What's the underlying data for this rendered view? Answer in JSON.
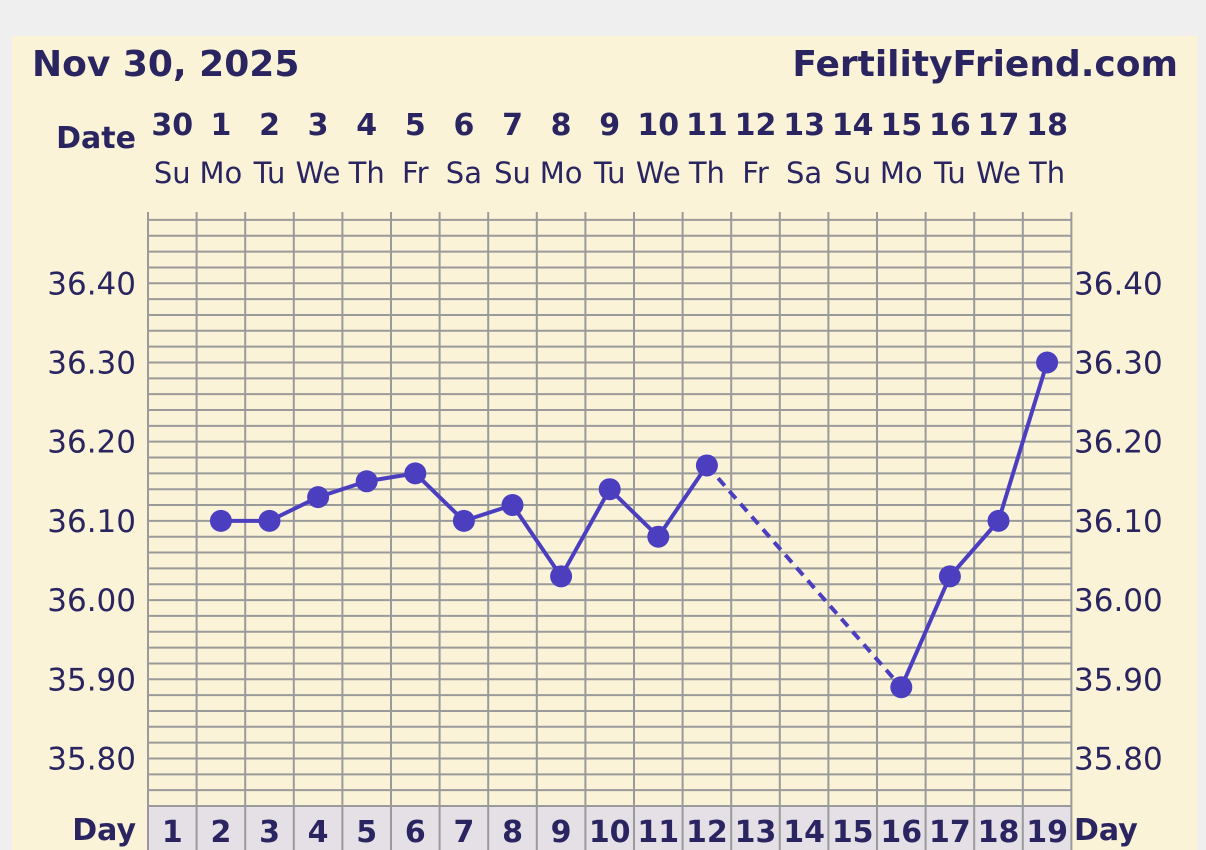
{
  "header": {
    "date_label": "Nov 30, 2025",
    "site": "FertilityFriend.com"
  },
  "labels": {
    "date_row": "Date",
    "day_row": "Day"
  },
  "colors": {
    "line": "#4b3fc0",
    "text": "#2a2560",
    "background": "#faf3d7",
    "grid": "#9a9a9a",
    "day_cell": "#e4e0e6"
  },
  "chart_data": {
    "type": "line",
    "dates": [
      "30",
      "1",
      "2",
      "3",
      "4",
      "5",
      "6",
      "7",
      "8",
      "9",
      "10",
      "11",
      "12",
      "13",
      "14",
      "15",
      "16",
      "17",
      "18"
    ],
    "weekdays": [
      "Su",
      "Mo",
      "Tu",
      "We",
      "Th",
      "Fr",
      "Sa",
      "Su",
      "Mo",
      "Tu",
      "We",
      "Th",
      "Fr",
      "Sa",
      "Su",
      "Mo",
      "Tu",
      "We",
      "Th"
    ],
    "days": [
      "1",
      "2",
      "3",
      "4",
      "5",
      "6",
      "7",
      "8",
      "9",
      "10",
      "11",
      "12",
      "13",
      "14",
      "15",
      "16",
      "17",
      "18",
      "19"
    ],
    "y_ticks": [
      "36.40",
      "36.30",
      "36.20",
      "36.10",
      "36.00",
      "35.90",
      "35.80"
    ],
    "ylim": [
      35.74,
      36.49
    ],
    "grid": true,
    "points": [
      {
        "day": 2,
        "temp": 36.1
      },
      {
        "day": 3,
        "temp": 36.1
      },
      {
        "day": 4,
        "temp": 36.13
      },
      {
        "day": 5,
        "temp": 36.15
      },
      {
        "day": 6,
        "temp": 36.16
      },
      {
        "day": 7,
        "temp": 36.1
      },
      {
        "day": 8,
        "temp": 36.12
      },
      {
        "day": 9,
        "temp": 36.03
      },
      {
        "day": 10,
        "temp": 36.14
      },
      {
        "day": 11,
        "temp": 36.08
      },
      {
        "day": 12,
        "temp": 36.17
      },
      {
        "day": 16,
        "temp": 35.89
      },
      {
        "day": 17,
        "temp": 36.03
      },
      {
        "day": 18,
        "temp": 36.1
      },
      {
        "day": 19,
        "temp": 36.3
      }
    ],
    "dashed_segments": [
      [
        12,
        16
      ]
    ]
  }
}
